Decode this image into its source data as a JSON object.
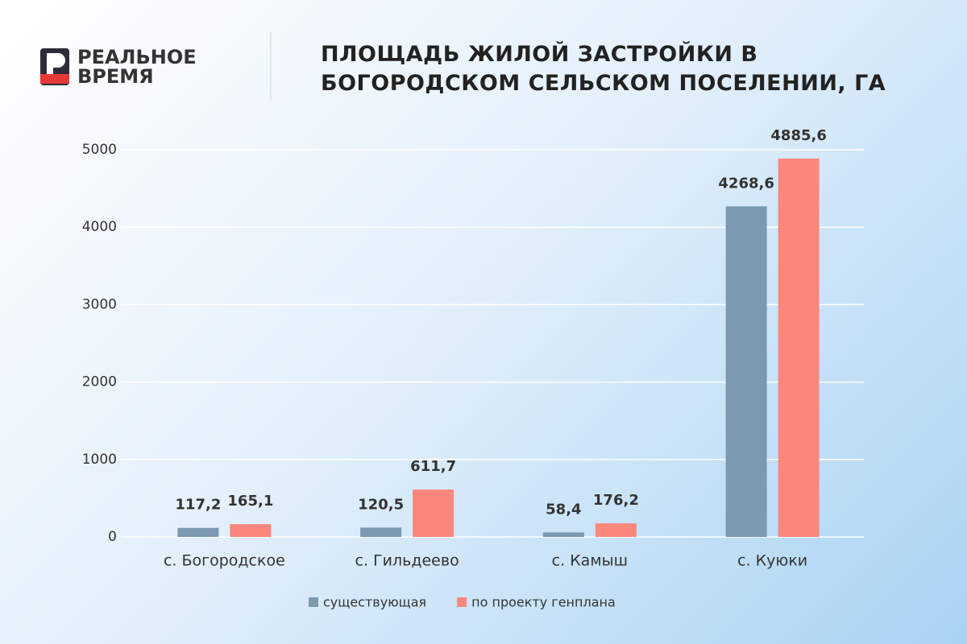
{
  "logo": {
    "line1": "РЕАЛЬНОЕ",
    "line2": "ВРЕМЯ"
  },
  "chart_data": {
    "type": "bar",
    "title": "ПЛОЩАДЬ ЖИЛОЙ ЗАСТРОЙКИ В БОГОРОДСКОМ СЕЛЬСКОМ ПОСЕЛЕНИИ, ГА",
    "categories": [
      "с. Богородское",
      "с. Гильдеево",
      "с. Камыш",
      "с. Куюки"
    ],
    "series": [
      {
        "name": "существующая",
        "color": "#7b99b1",
        "values": [
          117.2,
          120.5,
          58.4,
          4268.6
        ],
        "value_labels": [
          "117,2",
          "120,5",
          "58,4",
          "4268,6"
        ]
      },
      {
        "name": "по проекту генплана",
        "color": "#fa877c",
        "values": [
          165.1,
          611.7,
          176.2,
          4885.6
        ],
        "value_labels": [
          "165,1",
          "611,7",
          "176,2",
          "4885,6"
        ]
      }
    ],
    "ylim": [
      0,
      5000
    ],
    "yticks": [
      0,
      1000,
      2000,
      3000,
      4000,
      5000
    ],
    "grid": true,
    "legend": "bottom"
  }
}
